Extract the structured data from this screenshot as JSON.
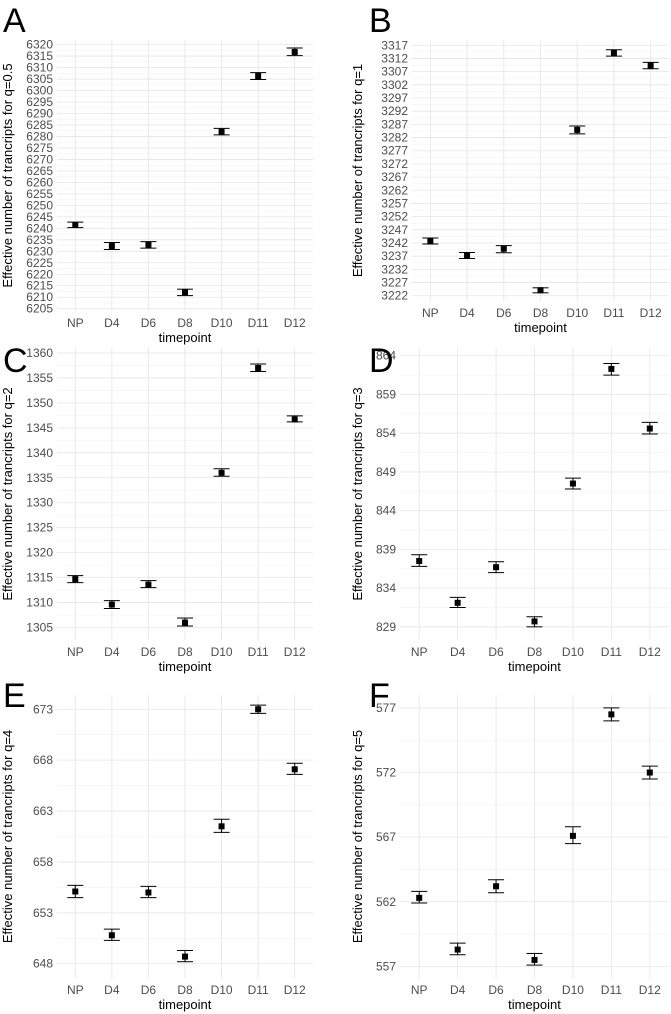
{
  "figure": {
    "categories": [
      "NP",
      "D4",
      "D6",
      "D8",
      "D10",
      "D11",
      "D12"
    ],
    "xlabel": "timepoint"
  },
  "chart_data": [
    {
      "panel": "A",
      "type": "scatter",
      "title": "",
      "xlabel": "timepoint",
      "ylabel": "Effective number of trancripts for q=0.5",
      "categories": [
        "NP",
        "D4",
        "D6",
        "D8",
        "D10",
        "D11",
        "D12"
      ],
      "yticks": [
        6205,
        6210,
        6215,
        6220,
        6225,
        6230,
        6235,
        6240,
        6245,
        6250,
        6255,
        6260,
        6265,
        6270,
        6275,
        6280,
        6285,
        6290,
        6295,
        6300,
        6305,
        6310,
        6315,
        6320
      ],
      "ylim": [
        6204,
        6322
      ],
      "values": [
        6241.5,
        6232.3,
        6232.8,
        6212.2,
        6282.0,
        6306.3,
        6316.8
      ],
      "error_low": [
        6240.3,
        6230.8,
        6231.4,
        6210.7,
        6280.7,
        6304.8,
        6315.2
      ],
      "error_high": [
        6242.7,
        6233.8,
        6234.2,
        6213.5,
        6283.5,
        6307.8,
        6318.5
      ]
    },
    {
      "panel": "B",
      "type": "scatter",
      "title": "",
      "xlabel": "timepoint",
      "ylabel": "Effective number of trancripts for q=1",
      "categories": [
        "NP",
        "D4",
        "D6",
        "D8",
        "D10",
        "D11",
        "D12"
      ],
      "yticks": [
        3222,
        3227,
        3232,
        3237,
        3242,
        3247,
        3252,
        3257,
        3262,
        3267,
        3272,
        3277,
        3282,
        3287,
        3292,
        3297,
        3302,
        3307,
        3312,
        3317
      ],
      "ylim": [
        3220,
        3319
      ],
      "values": [
        3242.7,
        3237.3,
        3239.8,
        3224.1,
        3284.9,
        3314.1,
        3309.3
      ],
      "error_low": [
        3241.6,
        3236.1,
        3238.3,
        3223.1,
        3283.4,
        3312.9,
        3308.1
      ],
      "error_high": [
        3243.9,
        3238.4,
        3241.0,
        3225.0,
        3286.4,
        3315.3,
        3310.5
      ]
    },
    {
      "panel": "C",
      "type": "scatter",
      "title": "",
      "xlabel": "timepoint",
      "ylabel": "Effective number of trancripts for q=2",
      "categories": [
        "NP",
        "D4",
        "D6",
        "D8",
        "D10",
        "D11",
        "D12"
      ],
      "yticks": [
        1305,
        1310,
        1315,
        1320,
        1325,
        1330,
        1335,
        1340,
        1345,
        1350,
        1355,
        1360
      ],
      "ylim": [
        1302.5,
        1361
      ],
      "values": [
        1314.7,
        1309.6,
        1313.6,
        1306.0,
        1336.0,
        1357.0,
        1346.7
      ],
      "error_low": [
        1314.0,
        1308.8,
        1313.0,
        1305.3,
        1335.3,
        1356.3,
        1346.2
      ],
      "error_high": [
        1315.4,
        1310.4,
        1314.4,
        1306.9,
        1336.8,
        1357.8,
        1347.4
      ]
    },
    {
      "panel": "D",
      "type": "scatter",
      "title": "",
      "xlabel": "timepoint",
      "ylabel": "Effective number of trancripts for q=3",
      "categories": [
        "NP",
        "D4",
        "D6",
        "D8",
        "D10",
        "D11",
        "D12"
      ],
      "yticks": [
        829,
        834,
        839,
        844,
        849,
        854,
        859,
        864
      ],
      "ylim": [
        827.3,
        865
      ],
      "values": [
        837.5,
        832.1,
        836.7,
        829.7,
        847.5,
        862.3,
        854.6
      ],
      "error_low": [
        836.8,
        831.5,
        836.0,
        829.0,
        846.8,
        861.5,
        853.9
      ],
      "error_high": [
        838.3,
        832.8,
        837.4,
        830.3,
        848.2,
        863.0,
        855.4
      ]
    },
    {
      "panel": "E",
      "type": "scatter",
      "title": "",
      "xlabel": "timepoint",
      "ylabel": "Effective number of trancripts for q=4",
      "categories": [
        "NP",
        "D4",
        "D6",
        "D8",
        "D10",
        "D11",
        "D12"
      ],
      "yticks": [
        648,
        653,
        658,
        663,
        668,
        673
      ],
      "ylim": [
        646.6,
        674.4
      ],
      "values": [
        655.1,
        650.8,
        655.0,
        648.7,
        661.5,
        673.0,
        667.1
      ],
      "error_low": [
        654.5,
        650.3,
        654.5,
        648.2,
        660.9,
        672.6,
        666.6
      ],
      "error_high": [
        655.7,
        651.4,
        655.6,
        649.3,
        662.2,
        673.4,
        667.7
      ]
    },
    {
      "panel": "F",
      "type": "scatter",
      "title": "",
      "xlabel": "timepoint",
      "ylabel": "Effective number of trancripts for q=5",
      "categories": [
        "NP",
        "D4",
        "D6",
        "D8",
        "D10",
        "D11",
        "D12"
      ],
      "yticks": [
        557,
        562,
        567,
        572,
        577
      ],
      "ylim": [
        556.1,
        578
      ],
      "values": [
        562.3,
        558.3,
        563.2,
        557.5,
        567.1,
        576.5,
        572.0
      ],
      "error_low": [
        561.9,
        557.9,
        562.7,
        557.1,
        566.5,
        576.0,
        571.5
      ],
      "error_high": [
        562.8,
        558.8,
        563.7,
        558.0,
        567.8,
        577.0,
        572.5
      ]
    }
  ]
}
